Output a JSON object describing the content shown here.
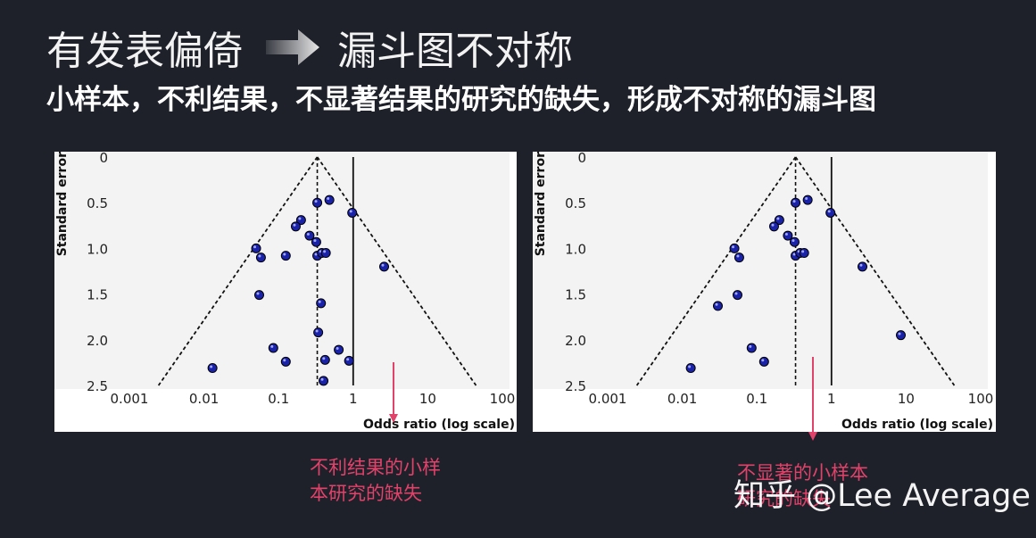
{
  "title": {
    "left": "有发表偏倚",
    "right": "漏斗图不对称"
  },
  "subtitle": "小样本，不利结果，不显著结果的研究的缺失，形成不对称的漏斗图",
  "colors": {
    "background": "#1f212a",
    "point": "#1a22a8",
    "annotation": "#e0426a"
  },
  "chart_data": [
    {
      "type": "scatter",
      "xlabel": "Odds ratio (log scale)",
      "ylabel": "Standard error",
      "xscale": "log",
      "xlim": [
        0.001,
        100
      ],
      "ylim": [
        2.5,
        0
      ],
      "xticks": [
        "0.001",
        "0.01",
        "0.1",
        "1",
        "10",
        "100"
      ],
      "yticks": [
        "0",
        "0.5",
        "1.0",
        "1.5",
        "2.0",
        "2.5"
      ],
      "pooled_or": 0.33,
      "null_or": 1,
      "points": [
        {
          "x": 0.33,
          "y": 0.5
        },
        {
          "x": 0.48,
          "y": 0.47
        },
        {
          "x": 0.97,
          "y": 0.61
        },
        {
          "x": 0.2,
          "y": 0.69
        },
        {
          "x": 0.17,
          "y": 0.76
        },
        {
          "x": 0.26,
          "y": 0.86
        },
        {
          "x": 0.32,
          "y": 0.93
        },
        {
          "x": 0.05,
          "y": 1.0
        },
        {
          "x": 0.058,
          "y": 1.1
        },
        {
          "x": 0.125,
          "y": 1.08
        },
        {
          "x": 0.33,
          "y": 1.08
        },
        {
          "x": 0.38,
          "y": 1.05
        },
        {
          "x": 0.43,
          "y": 1.05
        },
        {
          "x": 2.6,
          "y": 1.2
        },
        {
          "x": 0.055,
          "y": 1.51
        },
        {
          "x": 0.37,
          "y": 1.6
        },
        {
          "x": 0.34,
          "y": 1.92
        },
        {
          "x": 0.085,
          "y": 2.09
        },
        {
          "x": 0.64,
          "y": 2.11
        },
        {
          "x": 0.013,
          "y": 2.31
        },
        {
          "x": 0.125,
          "y": 2.24
        },
        {
          "x": 0.42,
          "y": 2.22
        },
        {
          "x": 0.88,
          "y": 2.23
        },
        {
          "x": 0.4,
          "y": 2.45
        }
      ]
    },
    {
      "type": "scatter",
      "xlabel": "Odds ratio (log scale)",
      "ylabel": "Standard error",
      "xscale": "log",
      "xlim": [
        0.001,
        100
      ],
      "ylim": [
        2.5,
        0
      ],
      "xticks": [
        "0.001",
        "0.01",
        "0.1",
        "1",
        "10",
        "100"
      ],
      "yticks": [
        "0",
        "0.5",
        "1.0",
        "1.5",
        "2.0",
        "2.5"
      ],
      "pooled_or": 0.33,
      "null_or": 1,
      "points": [
        {
          "x": 0.33,
          "y": 0.5
        },
        {
          "x": 0.48,
          "y": 0.47
        },
        {
          "x": 0.97,
          "y": 0.61
        },
        {
          "x": 0.2,
          "y": 0.69
        },
        {
          "x": 0.17,
          "y": 0.76
        },
        {
          "x": 0.26,
          "y": 0.86
        },
        {
          "x": 0.32,
          "y": 0.93
        },
        {
          "x": 0.05,
          "y": 1.0
        },
        {
          "x": 0.058,
          "y": 1.1
        },
        {
          "x": 0.33,
          "y": 1.08
        },
        {
          "x": 0.38,
          "y": 1.05
        },
        {
          "x": 0.43,
          "y": 1.05
        },
        {
          "x": 2.6,
          "y": 1.2
        },
        {
          "x": 0.055,
          "y": 1.51
        },
        {
          "x": 0.03,
          "y": 1.63
        },
        {
          "x": 8.5,
          "y": 1.95
        },
        {
          "x": 0.085,
          "y": 2.09
        },
        {
          "x": 0.013,
          "y": 2.31
        },
        {
          "x": 0.125,
          "y": 2.24
        }
      ]
    }
  ],
  "annotations": [
    {
      "text": [
        "不利结果的小样",
        "本研究的缺失"
      ]
    },
    {
      "text": [
        "不显著的小样本",
        "研究的缺失"
      ]
    }
  ],
  "watermark": "知乎 @Lee Average"
}
